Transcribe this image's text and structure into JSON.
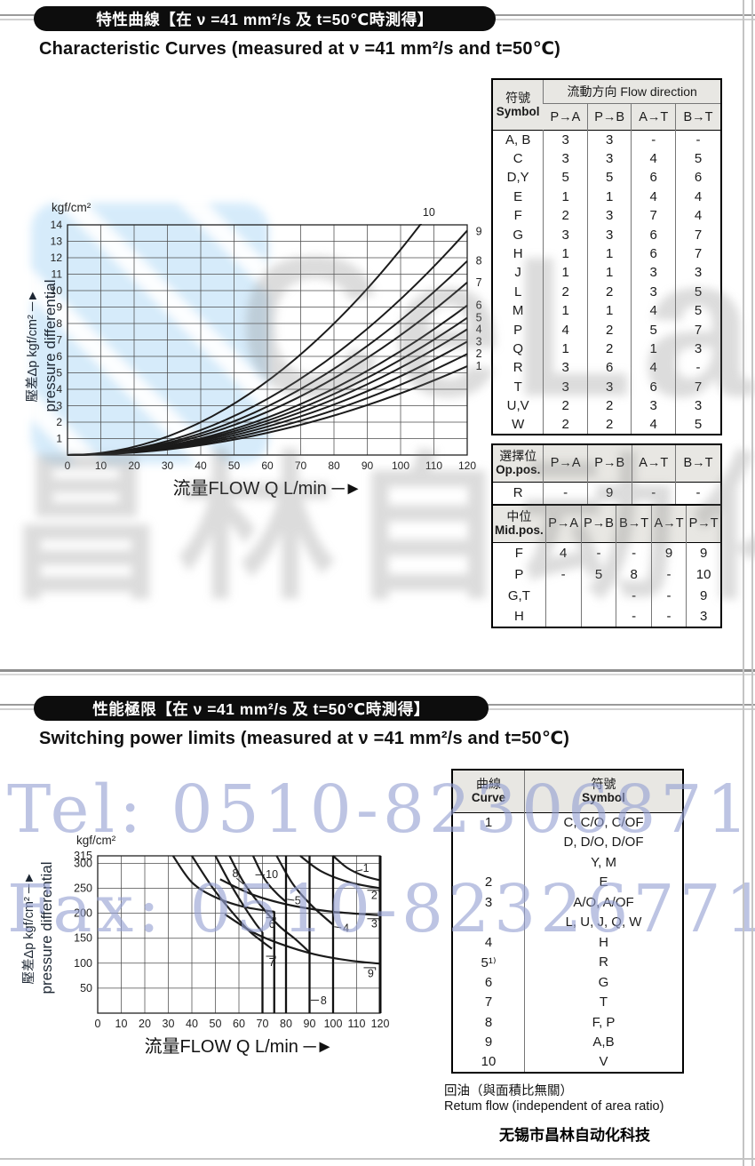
{
  "page": {
    "footer": "无锡市昌林自动化科技"
  },
  "watermarks": {
    "tel": "Tel: 0510-82306871",
    "fax": "Fax: 0510-82326771",
    "logo_latin": "CeLair",
    "logo_cjk": "昌林自动化"
  },
  "section_characteristic": {
    "pill": "特性曲線【在 ν =41 mm²/s 及 t=50℃時測得】",
    "subtitle": "Characteristic Curves  (measured at ν =41 mm²/s and t=50℃)",
    "flow_table": {
      "corner_zh": "符號",
      "corner_en": "Symbol",
      "group_header": "流動方向  Flow direction",
      "cols": [
        "P→A",
        "P→B",
        "A→T",
        "B→T"
      ],
      "rows": [
        [
          "A, B",
          "3",
          "3",
          "-",
          "-"
        ],
        [
          "C",
          "3",
          "3",
          "4",
          "5"
        ],
        [
          "D,Y",
          "5",
          "5",
          "6",
          "6"
        ],
        [
          "E",
          "1",
          "1",
          "4",
          "4"
        ],
        [
          "F",
          "2",
          "3",
          "7",
          "4"
        ],
        [
          "G",
          "3",
          "3",
          "6",
          "7"
        ],
        [
          "H",
          "1",
          "1",
          "6",
          "7"
        ],
        [
          "J",
          "1",
          "1",
          "3",
          "3"
        ],
        [
          "L",
          "2",
          "2",
          "3",
          "5"
        ],
        [
          "M",
          "1",
          "1",
          "4",
          "5"
        ],
        [
          "P",
          "4",
          "2",
          "5",
          "7"
        ],
        [
          "Q",
          "1",
          "2",
          "1",
          "3"
        ],
        [
          "R",
          "3",
          "6",
          "4",
          "-"
        ],
        [
          "T",
          "3",
          "3",
          "6",
          "7"
        ],
        [
          "U,V",
          "2",
          "2",
          "3",
          "3"
        ],
        [
          "W",
          "2",
          "2",
          "4",
          "5"
        ]
      ]
    },
    "op_table": {
      "corner_zh": "選擇位",
      "corner_en": "Op.pos.",
      "cols": [
        "P→A",
        "P→B",
        "A→T",
        "B→T"
      ],
      "rows": [
        [
          "R",
          "-",
          "9",
          "-",
          "-"
        ]
      ]
    },
    "mid_table": {
      "corner_zh": "中位",
      "corner_en": "Mid.pos.",
      "cols": [
        "P→A",
        "P→B",
        "B→T",
        "A→T",
        "P→T"
      ],
      "rows": [
        [
          "F",
          "4",
          "-",
          "-",
          "9",
          "9"
        ],
        [
          "P",
          "-",
          "5",
          "8",
          "-",
          "10"
        ],
        [
          "G,T",
          "",
          "",
          "-",
          "-",
          "9"
        ],
        [
          "H",
          "",
          "",
          "-",
          "-",
          "3"
        ]
      ]
    }
  },
  "section_limits": {
    "pill": "性能極限【在 ν =41 mm²/s 及 t=50℃時測得】",
    "subtitle": "Switching power limits  (measured at ν =41 mm²/s and t=50℃)",
    "curve_table": {
      "col1_zh": "曲線",
      "col1_en": "Curve",
      "col2_zh": "符號",
      "col2_en": "Symbol",
      "rows": [
        [
          "1",
          "C, C/O, C/OF"
        ],
        [
          "",
          "D, D/O, D/OF"
        ],
        [
          "",
          "Y, M"
        ],
        [
          "2",
          "E"
        ],
        [
          "3",
          "A/O, A/OF"
        ],
        [
          "",
          "L, U, J, Q, W"
        ],
        [
          "4",
          "H"
        ],
        [
          "5¹⁾",
          "R"
        ],
        [
          "6",
          "G"
        ],
        [
          "7",
          "T"
        ],
        [
          "8",
          "F, P"
        ],
        [
          "9",
          "A,B"
        ],
        [
          "10",
          "V"
        ]
      ]
    },
    "note_zh": "回油（與面積比無關）",
    "note_en": "Retum flow (independent of area ratio)"
  },
  "chart_data": [
    {
      "id": "characteristic-curves",
      "type": "line",
      "title": "Characteristic Curves",
      "x_label": "流量FLOW  Q  L/min ─►",
      "y_unit": "kgf/cm²",
      "y_axis_zh": "壓差Δp kgf/cm² ─►",
      "y_axis_en": "pressure differential",
      "xlim": [
        0,
        120
      ],
      "ylim": [
        0,
        14
      ],
      "x_ticks": [
        0,
        10,
        20,
        30,
        40,
        50,
        60,
        70,
        80,
        90,
        100,
        110,
        120
      ],
      "y_ticks": [
        1,
        2,
        3,
        4,
        5,
        6,
        7,
        8,
        9,
        10,
        11,
        12,
        13,
        14
      ],
      "grid": true,
      "series_shape": "parabola_from_origin",
      "series": [
        {
          "name": "1",
          "to": [
            120,
            5.4
          ]
        },
        {
          "name": "2",
          "to": [
            120,
            6.15
          ]
        },
        {
          "name": "3",
          "to": [
            120,
            6.9
          ]
        },
        {
          "name": "4",
          "to": [
            120,
            7.65
          ]
        },
        {
          "name": "5",
          "to": [
            120,
            8.35
          ]
        },
        {
          "name": "6",
          "to": [
            120,
            9.1
          ]
        },
        {
          "name": "7",
          "to": [
            120,
            10.5
          ]
        },
        {
          "name": "8",
          "to": [
            120,
            11.8
          ]
        },
        {
          "name": "9",
          "to": [
            120,
            13.65
          ]
        },
        {
          "name": "10",
          "to": [
            107,
            14.3
          ],
          "exits_top": true
        }
      ],
      "curve_labels": [
        {
          "t": "10",
          "x": 108.5,
          "y": 14.75
        },
        {
          "t": "9",
          "x": 123.5,
          "y": 13.6
        },
        {
          "t": "8",
          "x": 123.5,
          "y": 11.8
        },
        {
          "t": "7",
          "x": 123.5,
          "y": 10.5
        },
        {
          "t": "6",
          "x": 123.5,
          "y": 9.1
        },
        {
          "t": "5",
          "x": 123.5,
          "y": 8.35
        },
        {
          "t": "4",
          "x": 123.5,
          "y": 7.65
        },
        {
          "t": "3",
          "x": 123.5,
          "y": 6.9
        },
        {
          "t": "2",
          "x": 123.5,
          "y": 6.15
        },
        {
          "t": "1",
          "x": 123.5,
          "y": 5.4
        }
      ]
    },
    {
      "id": "switching-power-limits",
      "type": "line",
      "title": "Switching power limits",
      "x_label": "流量FLOW  Q  L/min ─►",
      "y_unit": "kgf/cm²",
      "y_axis_zh": "壓差Δp kgf/cm² ─►",
      "y_axis_en": "pressure differential",
      "xlim": [
        0,
        120
      ],
      "ylim": [
        0,
        315
      ],
      "x_ticks": [
        0,
        10,
        20,
        30,
        40,
        50,
        60,
        70,
        80,
        90,
        100,
        110,
        120
      ],
      "y_ticks": [
        50,
        100,
        150,
        200,
        250,
        300,
        315
      ],
      "grid": true,
      "series": [
        {
          "name": "1",
          "points": [
            [
              100,
              315
            ],
            [
              106,
              291
            ],
            [
              113,
              275
            ],
            [
              120,
              266
            ]
          ],
          "limit": 120
        },
        {
          "name": "2",
          "points": [
            [
              86,
              315
            ],
            [
              95,
              284
            ],
            [
              107,
              262
            ],
            [
              120,
              250
            ]
          ],
          "limit": 120
        },
        {
          "name": "3",
          "points": [
            [
              52,
              268
            ],
            [
              66,
              237
            ],
            [
              82,
              216
            ],
            [
              100,
              203
            ],
            [
              120,
              196
            ]
          ],
          "limit": 120
        },
        {
          "name": "4",
          "points": [
            [
              76,
              315
            ],
            [
              83,
              258
            ],
            [
              91,
              215
            ],
            [
              100,
              177
            ]
          ],
          "limit": 100
        },
        {
          "name": "5",
          "points": [
            [
              66,
              315
            ],
            [
              71,
              268
            ],
            [
              76,
              240
            ],
            [
              80,
              223
            ]
          ],
          "limit": 80
        },
        {
          "name": "6",
          "points": [
            [
              32,
              315
            ],
            [
              40,
              262
            ],
            [
              50,
              232
            ],
            [
              62,
              213
            ],
            [
              75,
              203
            ]
          ],
          "limit": 75
        },
        {
          "name": "7",
          "points": [
            [
              40,
              315
            ],
            [
              49,
              250
            ],
            [
              57,
              203
            ],
            [
              64,
              166
            ],
            [
              70,
              143
            ],
            [
              74,
              129
            ]
          ],
          "limit": 75
        },
        {
          "name": "8",
          "points": [
            [
              56,
              315
            ],
            [
              62,
              262
            ],
            [
              69,
              217
            ],
            [
              77,
              175
            ],
            [
              84,
              148
            ],
            [
              90,
              122
            ]
          ],
          "limit": 90
        },
        {
          "name": "9",
          "points": [
            [
              54,
              198
            ],
            [
              66,
              162
            ],
            [
              78,
              138
            ],
            [
              92,
              118
            ],
            [
              106,
              106
            ],
            [
              120,
              99
            ]
          ],
          "limit": 120
        },
        {
          "name": "10",
          "points": [
            [
              50,
              315
            ],
            [
              56,
              262
            ],
            [
              62,
              215
            ],
            [
              67,
              180
            ],
            [
              70,
              162
            ]
          ],
          "limit": 70
        }
      ],
      "limit_lines": [
        {
          "x": 70,
          "from": 162
        },
        {
          "x": 75,
          "from": 204
        },
        {
          "x": 80,
          "from": 315
        },
        {
          "x": 90,
          "from": 315
        },
        {
          "x": 100,
          "from": 315
        },
        {
          "x": 120,
          "from": 315,
          "thick": true
        }
      ],
      "curve_labels": [
        {
          "t": "8",
          "x": 58.5,
          "y": 279,
          "lead": [
            [
              59,
              270
            ],
            [
              62,
              258
            ]
          ]
        },
        {
          "t": "10",
          "x": 74,
          "y": 278,
          "lead": [
            [
              67,
              277
            ],
            [
              71,
              277
            ]
          ]
        },
        {
          "t": "5",
          "x": 85,
          "y": 225,
          "lead": [
            [
              80.5,
              228
            ],
            [
              83.5,
              226
            ]
          ]
        },
        {
          "t": "6",
          "x": 74,
          "y": 178,
          "lead": [
            [
              71.5,
              191
            ],
            [
              75.5,
              191
            ],
            [
              75.5,
              186
            ]
          ]
        },
        {
          "t": "7",
          "x": 74,
          "y": 101,
          "lead": [
            [
              71.5,
              114
            ],
            [
              75.5,
              114
            ],
            [
              75.5,
              109
            ]
          ]
        },
        {
          "t": "4",
          "x": 105.5,
          "y": 170,
          "lead": [
            [
              100.5,
              173
            ],
            [
              103.5,
              171
            ]
          ]
        },
        {
          "t": "1",
          "x": 114,
          "y": 290,
          "lead": [
            [
              109.5,
              284
            ],
            [
              112.5,
              287
            ]
          ]
        },
        {
          "t": "2",
          "x": 117.5,
          "y": 236,
          "lead": [
            [
              114.5,
              246
            ],
            [
              119.5,
              246
            ],
            [
              119.5,
              242
            ]
          ]
        },
        {
          "t": "3",
          "x": 117.5,
          "y": 179,
          "lead": [
            [
              114.5,
              189
            ],
            [
              119.5,
              189
            ],
            [
              119.5,
              185
            ]
          ]
        },
        {
          "t": "9",
          "x": 116,
          "y": 79,
          "lead": [
            [
              113,
              91
            ],
            [
              118,
              91
            ],
            [
              118,
              86
            ]
          ]
        },
        {
          "t": "8",
          "x": 96,
          "y": 25,
          "lead": [
            [
              90.5,
              26
            ],
            [
              94,
              26
            ]
          ]
        }
      ]
    }
  ]
}
